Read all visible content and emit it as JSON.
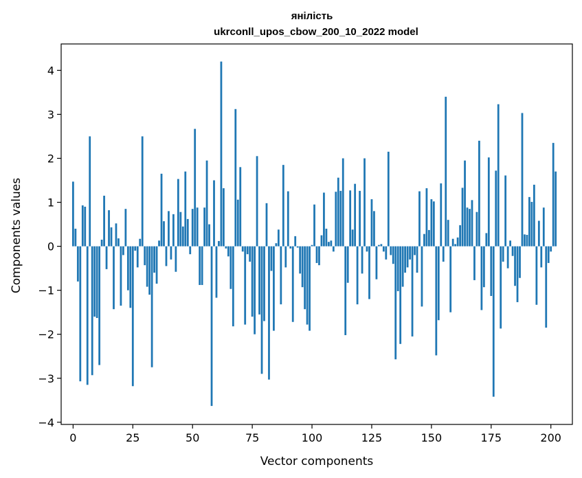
{
  "chart_data": {
    "type": "bar",
    "title_line1": "янілість",
    "title_line2": "ukrconll_upos_cbow_200_10_2022 model",
    "xlabel": "Vector components",
    "ylabel": "Components values",
    "xlim": [
      -5,
      209
    ],
    "ylim": [
      -4.05,
      4.6
    ],
    "x_ticks": [
      0,
      25,
      50,
      75,
      100,
      125,
      150,
      175,
      200
    ],
    "y_ticks": [
      -4,
      -3,
      -2,
      -1,
      0,
      1,
      2,
      3,
      4
    ],
    "y_tick_labels": [
      "−4",
      "−3",
      "−2",
      "−1",
      "0",
      "1",
      "2",
      "3",
      "4"
    ],
    "bar_color": "#1f77b4",
    "grid": false,
    "values": [
      1.47,
      0.4,
      -0.8,
      -3.07,
      0.93,
      0.9,
      -3.15,
      2.5,
      -2.93,
      -1.6,
      -1.63,
      -2.7,
      0.15,
      1.15,
      -0.52,
      0.82,
      0.43,
      -1.43,
      0.52,
      0.18,
      -1.35,
      -0.2,
      0.85,
      -1.0,
      -1.4,
      -3.18,
      -0.1,
      -0.48,
      0.17,
      2.5,
      -0.43,
      -0.92,
      -1.1,
      -2.75,
      -0.6,
      -0.85,
      0.13,
      1.65,
      0.57,
      -0.45,
      0.8,
      -0.3,
      0.73,
      -0.58,
      1.53,
      0.78,
      0.45,
      1.7,
      0.62,
      -0.18,
      0.85,
      2.67,
      0.88,
      -0.88,
      -0.88,
      0.88,
      1.95,
      0.5,
      -3.63,
      1.5,
      -1.17,
      0.12,
      4.2,
      1.32,
      -0.05,
      -0.23,
      -0.97,
      -1.82,
      3.12,
      1.06,
      1.8,
      -0.12,
      -1.78,
      -0.18,
      -0.35,
      -1.6,
      -2.0,
      2.05,
      -1.55,
      -2.9,
      -1.7,
      0.98,
      -3.03,
      -0.56,
      -1.92,
      0.07,
      0.38,
      -1.32,
      1.85,
      -0.48,
      1.25,
      -0.05,
      -1.72,
      0.23,
      -0.03,
      -0.62,
      -0.93,
      -1.43,
      -1.78,
      -1.92,
      0.03,
      0.95,
      -0.38,
      -0.43,
      0.25,
      1.22,
      0.4,
      0.1,
      0.13,
      -0.12,
      1.24,
      1.56,
      1.26,
      2.0,
      -2.02,
      -0.83,
      1.27,
      0.38,
      1.42,
      -1.32,
      1.26,
      -0.62,
      2.0,
      -0.12,
      -1.2,
      1.07,
      0.8,
      -0.75,
      0.03,
      0.05,
      -0.12,
      -0.3,
      2.15,
      -0.2,
      -0.4,
      -2.57,
      -1.02,
      -2.22,
      -0.92,
      -0.6,
      -0.48,
      -0.3,
      -2.05,
      -0.2,
      -0.6,
      1.25,
      -1.37,
      0.28,
      1.32,
      0.37,
      1.07,
      1.02,
      -2.48,
      -1.68,
      1.43,
      -0.35,
      3.4,
      0.6,
      -1.5,
      0.17,
      0.05,
      0.2,
      0.48,
      1.33,
      1.95,
      0.88,
      0.85,
      1.05,
      -0.77,
      0.78,
      2.4,
      -1.45,
      -0.93,
      0.3,
      2.02,
      -1.13,
      -3.42,
      1.72,
      3.23,
      -1.87,
      -0.35,
      1.61,
      -0.5,
      0.13,
      -0.22,
      -0.9,
      -1.27,
      -0.72,
      3.03,
      0.27,
      0.26,
      1.12,
      1.01,
      1.4,
      -1.33,
      0.58,
      -0.48,
      0.88,
      -1.85,
      -0.38,
      -0.12,
      2.35,
      1.7
    ]
  }
}
